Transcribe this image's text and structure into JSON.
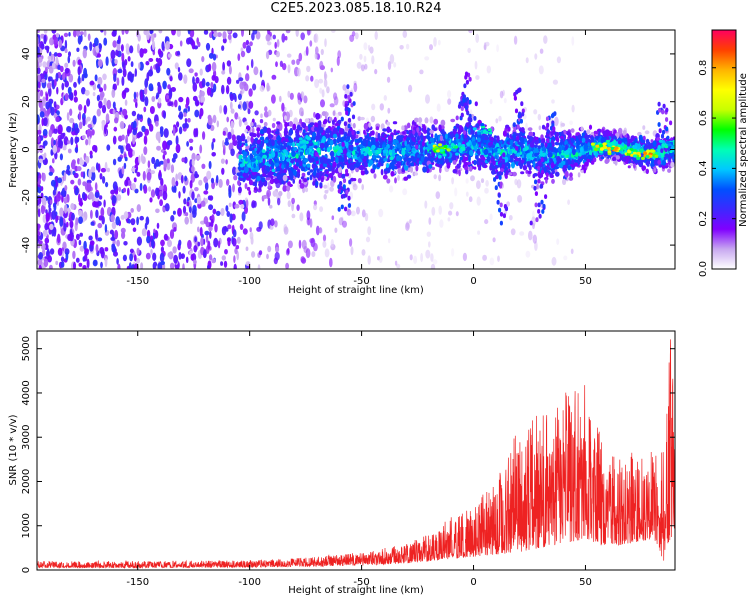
{
  "title": "C2E5.2023.085.18.10.R24",
  "chart_data": [
    {
      "type": "heatmap",
      "title": "",
      "xlabel": "Height of straight line (km)",
      "ylabel": "Frequency (Hz)",
      "xlim": [
        -195,
        90
      ],
      "ylim": [
        -50,
        50
      ],
      "xticks": [
        -150,
        -100,
        -50,
        0,
        50
      ],
      "yticks": [
        -40,
        -20,
        0,
        20,
        40
      ],
      "colorbar": {
        "label": "Normalized spectral amplitude",
        "range": [
          0,
          0.95
        ],
        "ticks": [
          0.0,
          0.2,
          0.4,
          0.6,
          0.8
        ],
        "colormap": [
          "#ffffff",
          "#c8a8f0",
          "#8000ff",
          "#3c28ff",
          "#0050ff",
          "#00c8ff",
          "#00ffb4",
          "#00ff00",
          "#c8ff00",
          "#ffff00",
          "#ffb400",
          "#ff4000",
          "#ff0060"
        ]
      },
      "band_center_hz": [
        [
          -100,
          -5
        ],
        [
          -80,
          -2
        ],
        [
          -60,
          0
        ],
        [
          -40,
          -1
        ],
        [
          -20,
          0
        ],
        [
          -10,
          1
        ],
        [
          0,
          2
        ],
        [
          10,
          -2
        ],
        [
          20,
          0
        ],
        [
          30,
          -3
        ],
        [
          40,
          -2
        ],
        [
          50,
          0
        ],
        [
          55,
          1
        ],
        [
          60,
          2
        ],
        [
          70,
          0
        ],
        [
          80,
          -2
        ],
        [
          88,
          0
        ]
      ],
      "hotspots": [
        {
          "x": -14,
          "y": 0,
          "amp": 0.75
        },
        {
          "x": -8,
          "y": 1,
          "amp": 0.65
        },
        {
          "x": 57,
          "y": 1,
          "amp": 0.8
        },
        {
          "x": 63,
          "y": 0,
          "amp": 0.85
        },
        {
          "x": 72,
          "y": -2,
          "amp": 0.8
        },
        {
          "x": 79,
          "y": -2,
          "amp": 0.85
        },
        {
          "x": -75,
          "y": 3,
          "amp": 0.45
        },
        {
          "x": 5,
          "y": 8,
          "amp": 0.5
        },
        {
          "x": 88,
          "y": 2,
          "amp": 0.5
        }
      ]
    },
    {
      "type": "line",
      "title": "",
      "xlabel": "Height of straight line (km)",
      "ylabel": "SNR (10 * v/v)",
      "xlim": [
        -195,
        90
      ],
      "ylim": [
        0,
        5400
      ],
      "xticks": [
        -150,
        -100,
        -50,
        0,
        50
      ],
      "yticks": [
        0,
        1000,
        2000,
        3000,
        4000,
        5000
      ],
      "color": "#ee2222",
      "envelope": {
        "x": [
          -195,
          -150,
          -100,
          -75,
          -50,
          -30,
          -20,
          -10,
          0,
          10,
          20,
          30,
          40,
          50,
          55,
          60,
          70,
          80,
          85,
          88,
          90
        ],
        "low": [
          50,
          50,
          60,
          80,
          100,
          150,
          200,
          250,
          300,
          350,
          400,
          500,
          600,
          700,
          600,
          500,
          600,
          700,
          200,
          700,
          800
        ],
        "high": [
          200,
          200,
          220,
          280,
          400,
          600,
          800,
          1200,
          1500,
          2000,
          3200,
          3600,
          4000,
          4200,
          3800,
          2600,
          2700,
          2700,
          2800,
          5400,
          4500
        ]
      }
    }
  ]
}
